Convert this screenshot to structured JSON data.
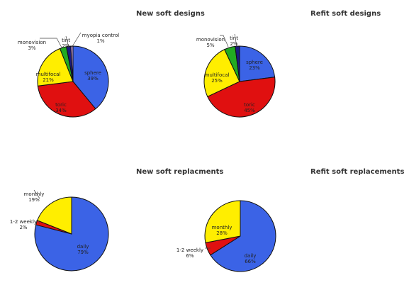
{
  "chart_data": [
    {
      "type": "pie",
      "title": "New soft designs",
      "slices": [
        {
          "label": "sphere",
          "value": 39,
          "display": "39%",
          "color": "#3b63e6"
        },
        {
          "label": "toric",
          "value": 34,
          "display": "34%",
          "color": "#e01010"
        },
        {
          "label": "multifocal",
          "value": 21,
          "display": "21%",
          "color": "#ffee00"
        },
        {
          "label": "monovision",
          "value": 3,
          "display": "3%",
          "color": "#22aa22"
        },
        {
          "label": "tint",
          "value": 2,
          "display": "2%",
          "color": "#1a1a80"
        },
        {
          "label": "myopia control",
          "value": 1,
          "display": "1%",
          "color": "#c8a0e6"
        }
      ]
    },
    {
      "type": "pie",
      "title": "Refit soft designs",
      "slices": [
        {
          "label": "sphere",
          "value": 23,
          "display": "23%",
          "color": "#3b63e6"
        },
        {
          "label": "toric",
          "value": 45,
          "display": "45%",
          "color": "#e01010"
        },
        {
          "label": "multifocal",
          "value": 25,
          "display": "25%",
          "color": "#ffee00"
        },
        {
          "label": "monovision",
          "value": 5,
          "display": "5%",
          "color": "#22aa22"
        },
        {
          "label": "tint",
          "value": 2,
          "display": "2%",
          "color": "#1a1a80"
        }
      ]
    },
    {
      "type": "pie",
      "title": "New soft replacments",
      "slices": [
        {
          "label": "daily",
          "value": 79,
          "display": "79%",
          "color": "#3b63e6"
        },
        {
          "label": "1-2 weekly",
          "value": 2,
          "display": "2%",
          "color": "#e01010"
        },
        {
          "label": "monthly",
          "value": 19,
          "display": "19%",
          "color": "#ffee00"
        }
      ]
    },
    {
      "type": "pie",
      "title": "Refit soft replacements",
      "slices": [
        {
          "label": "daily",
          "value": 66,
          "display": "66%",
          "color": "#3b63e6"
        },
        {
          "label": "1-2 weekly",
          "value": 6,
          "display": "6%",
          "color": "#e01010"
        },
        {
          "label": "monthly",
          "value": 28,
          "display": "28%",
          "color": "#ffee00"
        }
      ]
    }
  ]
}
